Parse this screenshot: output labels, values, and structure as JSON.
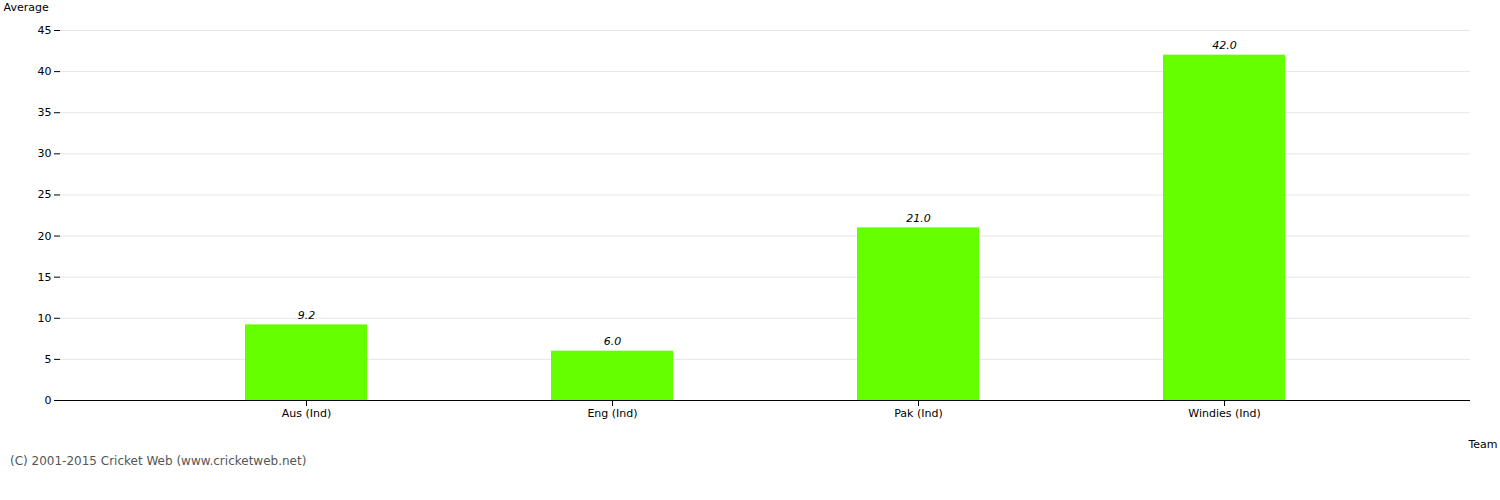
{
  "chart_data": {
    "type": "bar",
    "categories": [
      "Aus (Ind)",
      "Eng (Ind)",
      "Pak (Ind)",
      "Windies (Ind)"
    ],
    "values": [
      9.2,
      6.0,
      21.0,
      42.0
    ],
    "value_labels": [
      "9.2",
      "6.0",
      "21.0",
      "42.0"
    ],
    "data_labels": true,
    "color": "#66ff00",
    "xlabel": "Team",
    "ylabel": "Average",
    "ylim": [
      0,
      45
    ],
    "yticks": [
      0,
      5,
      10,
      15,
      20,
      25,
      30,
      35,
      40,
      45
    ],
    "grid": true,
    "caption": "(C) 2001-2015 Cricket Web (www.cricketweb.net)"
  }
}
